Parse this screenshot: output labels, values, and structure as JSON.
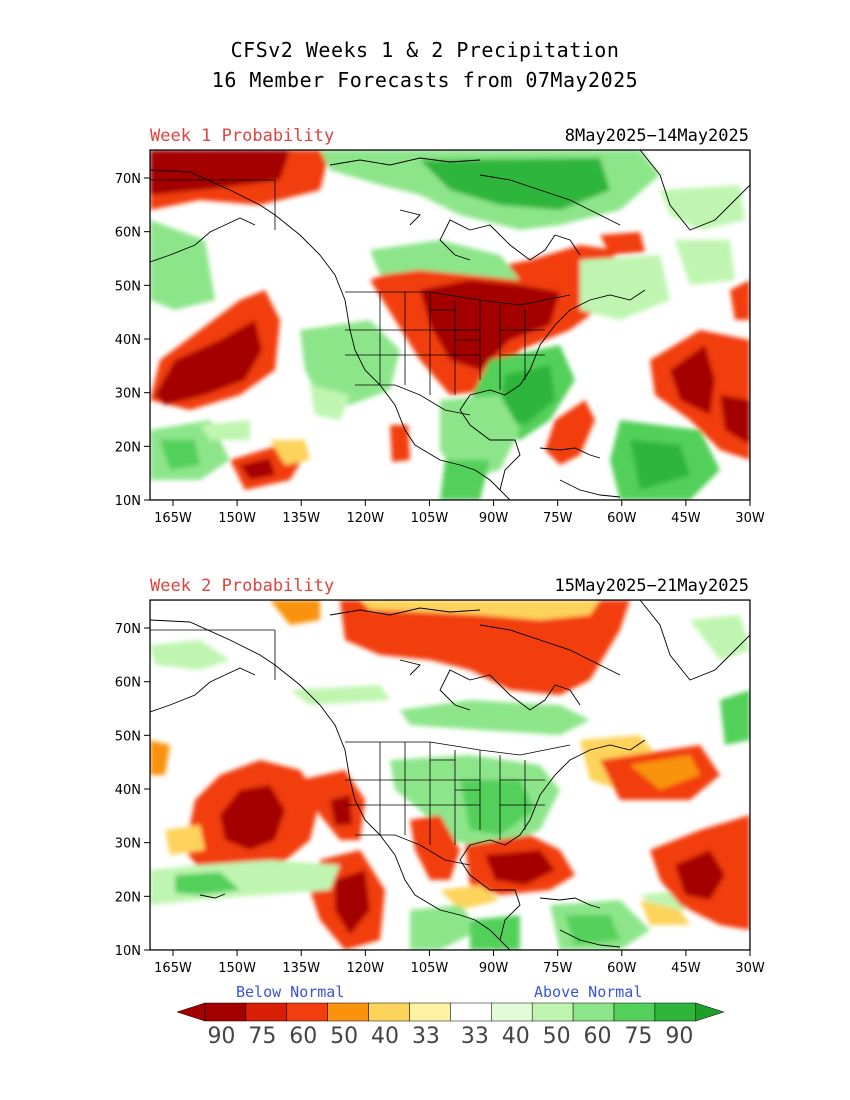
{
  "header": {
    "title_line1": "CFSv2 Weeks 1 & 2 Precipitation",
    "title_line2": "16 Member Forecasts from 07May2025"
  },
  "panels": [
    {
      "label": "Week 1 Probability",
      "dates": "8May2025−14May2025"
    },
    {
      "label": "Week 2 Probability",
      "dates": "15May2025−21May2025"
    }
  ],
  "axes": {
    "lat_labels": [
      "70N",
      "60N",
      "50N",
      "40N",
      "30N",
      "20N",
      "10N"
    ],
    "lon_labels": [
      "165W",
      "150W",
      "135W",
      "120W",
      "105W",
      "90W",
      "75W",
      "60W",
      "45W",
      "30W"
    ]
  },
  "legend": {
    "below_label": "Below Normal",
    "above_label": "Above Normal",
    "below_colors": [
      "#a50000",
      "#d81e05",
      "#f23d0e",
      "#f9930f",
      "#fdd35c",
      "#fff3a3"
    ],
    "above_colors": [
      "#e2fbd9",
      "#bff5b0",
      "#8de58a",
      "#52d05a",
      "#2fb53a"
    ],
    "end_below": "#a50000",
    "end_above": "#1f9f2a",
    "tick_labels": [
      "90",
      "75",
      "60",
      "50",
      "40",
      "33",
      "33",
      "40",
      "50",
      "60",
      "75",
      "90"
    ]
  },
  "colors": {
    "dry_strong": "#a50000",
    "dry_mid": "#f23d0e",
    "dry_light": "#fdd35c",
    "wet_strong": "#1f9f2a",
    "wet_mid": "#52d05a",
    "wet_light": "#c9f5bf",
    "label_red": "#e0423c",
    "label_blue": "#3a55d8"
  }
}
